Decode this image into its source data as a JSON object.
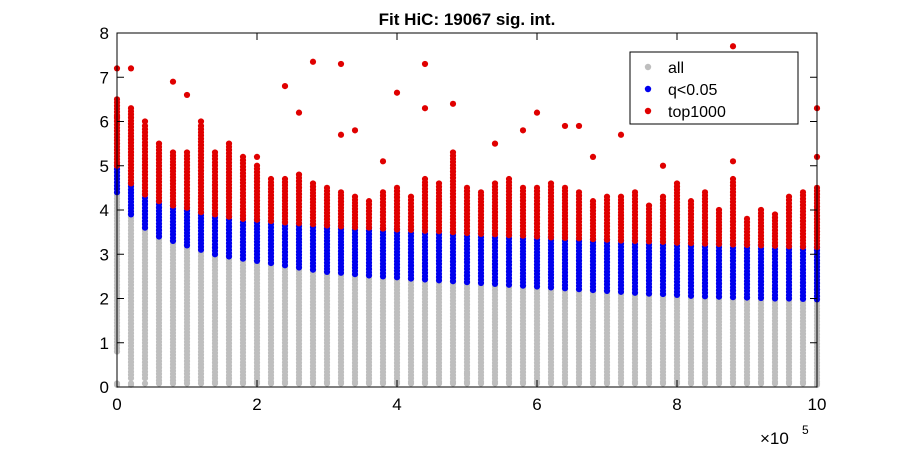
{
  "chart_data": {
    "type": "scatter",
    "title": "Fit HiC: 19067 sig. int.",
    "xlabel": "",
    "ylabel": "",
    "xlim": [
      0,
      1000000
    ],
    "ylim": [
      0,
      8
    ],
    "x_tick_values": [
      0,
      200000,
      400000,
      600000,
      800000,
      1000000
    ],
    "x_tick_labels": [
      "0",
      "2",
      "4",
      "6",
      "8",
      "10"
    ],
    "x_multiplier": "×10",
    "x_multiplier_exponent": "5",
    "y_tick_values": [
      0,
      1,
      2,
      3,
      4,
      5,
      6,
      7,
      8
    ],
    "y_tick_labels": [
      "0",
      "1",
      "2",
      "3",
      "4",
      "5",
      "6",
      "7",
      "8"
    ],
    "grid": false,
    "legend_position": "top-right",
    "colors": {
      "all": "#bebebe",
      "q<0.05": "#0000ee",
      "top1000": "#e00000"
    },
    "x": [
      0,
      20000,
      40000,
      60000,
      80000,
      100000,
      120000,
      140000,
      160000,
      180000,
      200000,
      220000,
      240000,
      260000,
      280000,
      300000,
      320000,
      340000,
      360000,
      380000,
      400000,
      420000,
      440000,
      460000,
      480000,
      500000,
      520000,
      540000,
      560000,
      580000,
      600000,
      620000,
      640000,
      660000,
      680000,
      700000,
      720000,
      740000,
      760000,
      780000,
      800000,
      820000,
      840000,
      860000,
      880000,
      900000,
      920000,
      940000,
      960000,
      980000,
      1000000
    ],
    "series": [
      {
        "name": "all",
        "min": [
          0.8,
          0.2,
          0.2,
          0.15,
          0.15,
          0.15,
          0.15,
          0.12,
          0.12,
          0.12,
          0.12,
          0.12,
          0.12,
          0.12,
          0.12,
          0.12,
          0.12,
          0.12,
          0.12,
          0.12,
          0.12,
          0.12,
          0.12,
          0.12,
          0.12,
          0.12,
          0.12,
          0.12,
          0.12,
          0.12,
          0.12,
          0.12,
          0.12,
          0.12,
          0.12,
          0.12,
          0.12,
          0.12,
          0.12,
          0.12,
          0.12,
          0.12,
          0.12,
          0.12,
          0.12,
          0.12,
          0.12,
          0.12,
          0.12,
          0.12,
          0.12
        ],
        "max": [
          4.4,
          3.9,
          3.6,
          3.4,
          3.3,
          3.2,
          3.1,
          3.0,
          2.95,
          2.9,
          2.85,
          2.8,
          2.75,
          2.7,
          2.65,
          2.6,
          2.58,
          2.55,
          2.52,
          2.5,
          2.48,
          2.45,
          2.43,
          2.41,
          2.39,
          2.37,
          2.35,
          2.33,
          2.31,
          2.29,
          2.27,
          2.25,
          2.23,
          2.21,
          2.19,
          2.17,
          2.15,
          2.13,
          2.11,
          2.1,
          2.08,
          2.06,
          2.05,
          2.04,
          2.03,
          2.02,
          2.01,
          2.0,
          2.0,
          1.99,
          1.98
        ],
        "outliers": [
          [
            0,
            0.05
          ],
          [
            20000,
            0.05
          ],
          [
            500000,
            0.3
          ],
          [
            1000000,
            0.05
          ]
        ]
      },
      {
        "name": "q<0.05",
        "min": [
          4.4,
          3.9,
          3.6,
          3.4,
          3.3,
          3.2,
          3.1,
          3.0,
          2.95,
          2.9,
          2.85,
          2.8,
          2.75,
          2.7,
          2.65,
          2.6,
          2.58,
          2.55,
          2.52,
          2.5,
          2.48,
          2.45,
          2.43,
          2.41,
          2.39,
          2.37,
          2.35,
          2.33,
          2.31,
          2.29,
          2.27,
          2.25,
          2.23,
          2.21,
          2.19,
          2.17,
          2.15,
          2.13,
          2.11,
          2.1,
          2.08,
          2.06,
          2.05,
          2.04,
          2.03,
          2.02,
          2.01,
          2.0,
          2.0,
          1.99,
          1.98
        ],
        "max": [
          5.0,
          4.6,
          4.35,
          4.2,
          4.1,
          4.05,
          3.95,
          3.9,
          3.85,
          3.8,
          3.78,
          3.75,
          3.72,
          3.7,
          3.68,
          3.65,
          3.63,
          3.61,
          3.6,
          3.58,
          3.56,
          3.55,
          3.53,
          3.52,
          3.5,
          3.48,
          3.46,
          3.45,
          3.43,
          3.42,
          3.4,
          3.38,
          3.37,
          3.36,
          3.34,
          3.33,
          3.31,
          3.3,
          3.29,
          3.28,
          3.26,
          3.25,
          3.24,
          3.23,
          3.22,
          3.21,
          3.2,
          3.19,
          3.18,
          3.17,
          3.16
        ]
      },
      {
        "name": "top1000",
        "min": [
          5.0,
          4.6,
          4.35,
          4.2,
          4.1,
          4.05,
          3.95,
          3.9,
          3.85,
          3.8,
          3.78,
          3.75,
          3.72,
          3.7,
          3.68,
          3.65,
          3.63,
          3.61,
          3.6,
          3.58,
          3.56,
          3.55,
          3.53,
          3.52,
          3.5,
          3.48,
          3.46,
          3.45,
          3.43,
          3.42,
          3.4,
          3.38,
          3.37,
          3.36,
          3.34,
          3.33,
          3.31,
          3.3,
          3.29,
          3.28,
          3.26,
          3.25,
          3.24,
          3.23,
          3.22,
          3.21,
          3.2,
          3.19,
          3.18,
          3.17,
          3.16
        ],
        "max": [
          6.5,
          6.3,
          5.9,
          5.5,
          5.3,
          5.3,
          5.9,
          5.3,
          5.5,
          5.2,
          5.0,
          4.7,
          4.7,
          4.8,
          4.6,
          4.5,
          4.4,
          4.3,
          4.2,
          4.4,
          4.5,
          4.3,
          4.7,
          4.6,
          5.3,
          4.5,
          4.4,
          4.6,
          4.7,
          4.5,
          4.5,
          4.6,
          4.5,
          4.4,
          4.2,
          4.3,
          4.3,
          4.4,
          4.1,
          4.3,
          4.6,
          4.2,
          4.4,
          4.0,
          4.7,
          3.8,
          4.0,
          3.9,
          4.3,
          4.4,
          4.5
        ],
        "outliers": [
          [
            0,
            7.2
          ],
          [
            0,
            6.1
          ],
          [
            20000,
            7.2
          ],
          [
            40000,
            6.0
          ],
          [
            80000,
            6.9
          ],
          [
            100000,
            6.6
          ],
          [
            120000,
            6.0
          ],
          [
            200000,
            5.2
          ],
          [
            240000,
            6.8
          ],
          [
            260000,
            6.2
          ],
          [
            280000,
            7.35
          ],
          [
            320000,
            7.3
          ],
          [
            320000,
            5.7
          ],
          [
            340000,
            5.8
          ],
          [
            380000,
            5.1
          ],
          [
            400000,
            6.65
          ],
          [
            440000,
            7.3
          ],
          [
            440000,
            6.3
          ],
          [
            480000,
            6.4
          ],
          [
            540000,
            5.5
          ],
          [
            580000,
            5.8
          ],
          [
            600000,
            6.2
          ],
          [
            640000,
            5.9
          ],
          [
            660000,
            5.9
          ],
          [
            680000,
            5.2
          ],
          [
            720000,
            5.7
          ],
          [
            780000,
            5.0
          ],
          [
            880000,
            7.7
          ],
          [
            880000,
            5.1
          ],
          [
            1000000,
            6.3
          ],
          [
            1000000,
            5.2
          ]
        ]
      }
    ]
  }
}
